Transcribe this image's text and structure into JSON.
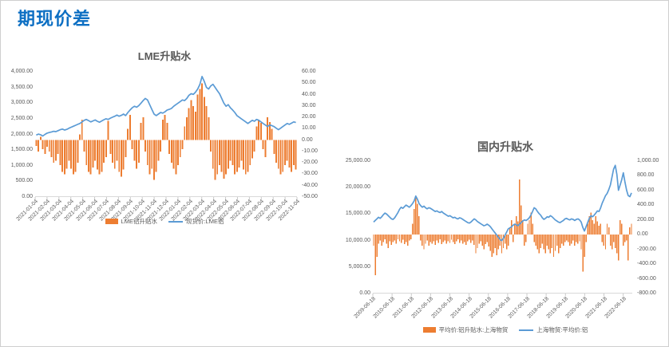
{
  "page": {
    "title": "期现价差"
  },
  "colors": {
    "accent_orange": "#ED7D31",
    "accent_blue": "#5B9BD5",
    "title_blue": "#0d6fc3",
    "axis_text": "#595959"
  },
  "chart_data": [
    {
      "type": "combo",
      "title": "LME升贴水",
      "legend_position": "bottom",
      "grid": false,
      "x_tick_labels": [
        "2021-01-04",
        "2021-02-04",
        "2021-03-04",
        "2021-04-04",
        "2021-05-04",
        "2021-06-04",
        "2021-07-04",
        "2021-08-04",
        "2021-09-04",
        "2021-10-04",
        "2021-11-04",
        "2021-12-04",
        "2022-01-04",
        "2022-02-04",
        "2022-03-04",
        "2022-04-04",
        "2022-05-04",
        "2022-06-04",
        "2022-07-04",
        "2022-08-04",
        "2022-09-04",
        "2022-10-04",
        "2022-11-04"
      ],
      "left_axis": {
        "min": 0,
        "max": 4000,
        "tick_labels": [
          "4,000.00",
          "3,500.00",
          "3,000.00",
          "2,500.00",
          "2,000.00",
          "1,500.00",
          "1,000.00",
          "500.00",
          "0.00"
        ]
      },
      "right_axis": {
        "min": -50,
        "max": 60,
        "tick_labels": [
          "60.00",
          "50.00",
          "40.00",
          "30.00",
          "20.00",
          "10.00",
          "0.00",
          "-10.00",
          "-20.00",
          "-30.00",
          "-40.00",
          "-50.00"
        ]
      },
      "series": [
        {
          "name": "LME铝升贴水",
          "type": "bar",
          "axis": "right",
          "color": "#ED7D31",
          "values": [
            -5,
            -10,
            3,
            -8,
            -12,
            -6,
            -10,
            -15,
            -20,
            -18,
            -12,
            -22,
            -28,
            -30,
            -25,
            -18,
            -25,
            -30,
            -28,
            -20,
            5,
            18,
            -10,
            -22,
            -28,
            -30,
            -24,
            -18,
            -26,
            -30,
            -28,
            -20,
            -15,
            17,
            -12,
            -20,
            -25,
            -18,
            -28,
            -32,
            -26,
            -15,
            10,
            22,
            -8,
            -18,
            -25,
            -20,
            15,
            20,
            -10,
            -22,
            -30,
            -25,
            -35,
            -28,
            -18,
            -10,
            18,
            22,
            15,
            -12,
            -20,
            -25,
            -30,
            -22,
            -15,
            -8,
            12,
            20,
            28,
            35,
            30,
            25,
            40,
            45,
            50,
            38,
            30,
            20,
            -10,
            -25,
            -35,
            -30,
            -22,
            -28,
            -34,
            -30,
            -25,
            -18,
            -22,
            -30,
            -28,
            -24,
            -18,
            -26,
            -30,
            -28,
            -22,
            -16,
            -10,
            12,
            18,
            15,
            -8,
            -15,
            20,
            16,
            10,
            -12,
            -20,
            -25,
            -30,
            -28,
            -22,
            -18,
            -24,
            -28,
            -22,
            -26
          ]
        },
        {
          "name": "现货价:LME铝",
          "type": "line",
          "axis": "left",
          "color": "#5B9BD5",
          "values": [
            1980,
            2010,
            1990,
            1950,
            2000,
            2040,
            2060,
            2080,
            2100,
            2090,
            2120,
            2150,
            2170,
            2140,
            2160,
            2200,
            2230,
            2260,
            2290,
            2320,
            2350,
            2400,
            2450,
            2480,
            2440,
            2400,
            2430,
            2460,
            2420,
            2390,
            2430,
            2470,
            2500,
            2480,
            2520,
            2550,
            2580,
            2620,
            2580,
            2610,
            2650,
            2600,
            2700,
            2780,
            2850,
            2900,
            2870,
            2920,
            3000,
            3080,
            3150,
            3100,
            2950,
            2800,
            2650,
            2600,
            2650,
            2700,
            2680,
            2720,
            2780,
            2800,
            2830,
            2900,
            2950,
            3000,
            3050,
            3100,
            3080,
            3150,
            3250,
            3300,
            3280,
            3350,
            3450,
            3600,
            3850,
            3700,
            3500,
            3450,
            3550,
            3600,
            3500,
            3400,
            3300,
            3150,
            3000,
            2900,
            2950,
            2850,
            2780,
            2700,
            2600,
            2550,
            2500,
            2450,
            2400,
            2350,
            2400,
            2450,
            2420,
            2480,
            2450,
            2400,
            2350,
            2300,
            2250,
            2300,
            2280,
            2250,
            2200,
            2150,
            2200,
            2250,
            2300,
            2350,
            2320,
            2360,
            2400,
            2380
          ]
        }
      ]
    },
    {
      "type": "combo",
      "title": "国内升贴水",
      "legend_position": "bottom",
      "grid": false,
      "x_tick_labels": [
        "2009-06-18",
        "2010-06-18",
        "2011-06-18",
        "2012-06-18",
        "2013-06-18",
        "2014-06-18",
        "2015-06-18",
        "2016-06-18",
        "2017-06-18",
        "2018-06-18",
        "2019-06-18",
        "2020-06-18",
        "2021-06-18",
        "2022-06-18"
      ],
      "left_axis": {
        "min": 0,
        "max": 25000,
        "tick_labels": [
          "25,000.00",
          "20,000.00",
          "15,000.00",
          "10,000.00",
          "5,000.00",
          "0.00"
        ]
      },
      "right_axis": {
        "min": -800,
        "max": 1000,
        "tick_labels": [
          "1,000.00",
          "800.00",
          "600.00",
          "400.00",
          "200.00",
          "0.00",
          "-200.00",
          "-400.00",
          "-600.00",
          "-800.00"
        ]
      },
      "series": [
        {
          "name": "平均价:铝升贴水:上海物贸",
          "type": "bar",
          "axis": "right",
          "color": "#ED7D31",
          "values": [
            -150,
            -550,
            -300,
            -120,
            -80,
            -150,
            -100,
            -60,
            -120,
            -180,
            -90,
            -140,
            -100,
            -80,
            -120,
            -60,
            -90,
            -110,
            -70,
            -130,
            -100,
            -150,
            -80,
            -60,
            150,
            350,
            500,
            420,
            250,
            -80,
            -150,
            -200,
            -120,
            -80,
            -150,
            -100,
            -120,
            -90,
            -140,
            -80,
            -110,
            -60,
            -130,
            -100,
            -80,
            -120,
            -90,
            -110,
            -70,
            -100,
            -130,
            -90,
            -60,
            -110,
            -80,
            -120,
            -100,
            -140,
            -90,
            -70,
            -110,
            -80,
            -140,
            -250,
            -180,
            -120,
            -90,
            -150,
            -200,
            -130,
            -100,
            -160,
            -220,
            -300,
            -250,
            -180,
            -280,
            -200,
            -150,
            -250,
            -180,
            -120,
            -200,
            -150,
            100,
            200,
            -100,
            150,
            250,
            180,
            750,
            400,
            200,
            -150,
            -100,
            150,
            200,
            300,
            150,
            -100,
            -150,
            -200,
            -250,
            -180,
            -120,
            -200,
            -250,
            -150,
            -200,
            -250,
            -180,
            -300,
            -220,
            -150,
            -250,
            -180,
            -120,
            -150,
            -100,
            -80,
            -100,
            -150,
            -120,
            -80,
            -150,
            -100,
            -120,
            -90,
            -200,
            -500,
            -300,
            -100,
            150,
            250,
            300,
            200,
            150,
            250,
            180,
            120,
            150,
            -100,
            -150,
            -200,
            150,
            100,
            -150,
            -200,
            -100,
            -180,
            -250,
            -350,
            200,
            150,
            -150,
            -100,
            -80,
            -350,
            100,
            150
          ]
        },
        {
          "name": "上海物贸:平均价:铝",
          "type": "line",
          "axis": "left",
          "color": "#5B9BD5",
          "values": [
            13500,
            13800,
            14100,
            14400,
            14200,
            14500,
            14900,
            15200,
            15000,
            14700,
            14400,
            14100,
            14000,
            14300,
            14800,
            15300,
            15900,
            16300,
            16100,
            16400,
            16700,
            16500,
            16300,
            16600,
            17000,
            17500,
            18400,
            17800,
            17000,
            16600,
            16300,
            16500,
            16200,
            16000,
            16200,
            16100,
            15900,
            15700,
            15500,
            15600,
            15400,
            15300,
            15500,
            15200,
            15000,
            14800,
            14600,
            14700,
            14500,
            14300,
            14400,
            14200,
            14100,
            14300,
            14200,
            14000,
            13800,
            13600,
            13400,
            13300,
            13500,
            13800,
            14100,
            13900,
            13600,
            13400,
            13200,
            13000,
            12800,
            12900,
            13100,
            12900,
            12600,
            12200,
            11800,
            11400,
            11000,
            10600,
            10200,
            10000,
            10400,
            11000,
            11600,
            12200,
            12400,
            12600,
            12900,
            13100,
            13000,
            12800,
            13100,
            13400,
            13700,
            13900,
            13800,
            14000,
            14300,
            14800,
            15500,
            16200,
            16000,
            15500,
            15100,
            14800,
            14300,
            14000,
            14200,
            14500,
            14400,
            14700,
            14500,
            14200,
            13900,
            13700,
            13500,
            13400,
            13600,
            13800,
            14100,
            14200,
            14000,
            13900,
            14100,
            14000,
            13800,
            14000,
            14100,
            13900,
            13500,
            12500,
            11800,
            12600,
            13400,
            14200,
            14700,
            14500,
            14800,
            15200,
            15600,
            15500,
            16200,
            17100,
            17800,
            18500,
            18900,
            19600,
            20500,
            22000,
            23500,
            24200,
            22500,
            19500,
            20500,
            21500,
            22800,
            21000,
            19500,
            18500,
            18300,
            19000
          ]
        }
      ]
    }
  ]
}
